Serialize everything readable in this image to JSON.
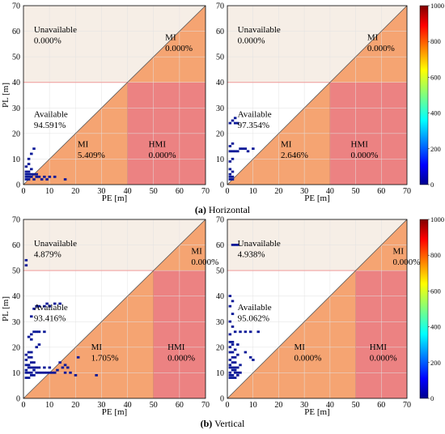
{
  "colors": {
    "unavailable": "#f6eee6",
    "mi": "#f5a472",
    "hmi": "#ec8282",
    "alertline": "#f09a9a",
    "grid": "#e2e2e2",
    "points": "#0c1a98"
  },
  "colorbar": {
    "min": 0,
    "max": 1000,
    "ticks": [
      "0",
      "200",
      "400",
      "600",
      "800",
      "1000"
    ],
    "colormap": "jet"
  },
  "captions": [
    {
      "letter": "(a)",
      "text": " Horizontal"
    },
    {
      "letter": "(b)",
      "text": " Vertical"
    }
  ],
  "chart_data": [
    {
      "type": "heatmap",
      "title": "",
      "xlabel": "PE [m]",
      "ylabel": "PL [m]",
      "xlim": [
        0,
        70
      ],
      "ylim": [
        0,
        70
      ],
      "xticks": [
        "0",
        "10",
        "20",
        "30",
        "40",
        "50",
        "60",
        "70"
      ],
      "yticks": [
        "0",
        "10",
        "20",
        "30",
        "40",
        "50",
        "60",
        "70"
      ],
      "alert_limit": 40,
      "regions": {
        "unavailable": {
          "label": "Unavailable",
          "value": "0.000%"
        },
        "available": {
          "label": "Available",
          "value": "94.591%"
        },
        "mi_upper": {
          "label": "MI",
          "value": "0.000%"
        },
        "mi_lower": {
          "label": "MI",
          "value": "5.409%"
        },
        "hmi": {
          "label": "HMI",
          "value": "0.000%"
        }
      },
      "points": [
        [
          1,
          2
        ],
        [
          1,
          3
        ],
        [
          2,
          2
        ],
        [
          2,
          3
        ],
        [
          3,
          3
        ],
        [
          4,
          2
        ],
        [
          5,
          3
        ],
        [
          6,
          3
        ],
        [
          7,
          2
        ],
        [
          8,
          3
        ],
        [
          1,
          4
        ],
        [
          2,
          4
        ],
        [
          3,
          4
        ],
        [
          4,
          4
        ],
        [
          5,
          4
        ],
        [
          1,
          5
        ],
        [
          2,
          5
        ],
        [
          3,
          6
        ],
        [
          1,
          7
        ],
        [
          2,
          8
        ],
        [
          2,
          10
        ],
        [
          3,
          12
        ],
        [
          4,
          14
        ],
        [
          10,
          3
        ],
        [
          12,
          3
        ],
        [
          16,
          2
        ],
        [
          9,
          2
        ]
      ]
    },
    {
      "type": "heatmap",
      "title": "",
      "xlabel": "PE [m]",
      "ylabel": "",
      "xlim": [
        0,
        70
      ],
      "ylim": [
        0,
        70
      ],
      "xticks": [
        "0",
        "10",
        "20",
        "30",
        "40",
        "50",
        "60",
        "70"
      ],
      "yticks": [
        "0",
        "10",
        "20",
        "30",
        "40",
        "50",
        "60",
        "70"
      ],
      "alert_limit": 40,
      "regions": {
        "unavailable": {
          "label": "Unavailable",
          "value": "0.000%"
        },
        "available": {
          "label": "Available",
          "value": "97.354%"
        },
        "mi_upper": {
          "label": "MI",
          "value": "0.000%"
        },
        "mi_lower": {
          "label": "MI",
          "value": "2.646%"
        },
        "hmi": {
          "label": "HMI",
          "value": "0.000%"
        }
      },
      "points": [
        [
          1,
          2
        ],
        [
          1,
          3
        ],
        [
          2,
          2
        ],
        [
          2,
          3
        ],
        [
          1,
          4
        ],
        [
          2,
          5
        ],
        [
          1,
          6
        ],
        [
          1,
          9
        ],
        [
          2,
          10
        ],
        [
          1,
          13
        ],
        [
          2,
          13
        ],
        [
          3,
          13
        ],
        [
          4,
          13
        ],
        [
          5,
          14
        ],
        [
          6,
          14
        ],
        [
          7,
          14
        ],
        [
          8,
          13
        ],
        [
          10,
          14
        ],
        [
          1,
          15
        ],
        [
          2,
          16
        ],
        [
          1,
          24
        ],
        [
          2,
          25
        ],
        [
          3,
          24
        ],
        [
          4,
          24
        ],
        [
          3,
          26
        ]
      ]
    },
    {
      "type": "heatmap",
      "title": "",
      "xlabel": "PE [m]",
      "ylabel": "PL [m]",
      "xlim": [
        0,
        70
      ],
      "ylim": [
        0,
        70
      ],
      "xticks": [
        "0",
        "10",
        "20",
        "30",
        "40",
        "50",
        "60",
        "70"
      ],
      "yticks": [
        "0",
        "10",
        "20",
        "30",
        "40",
        "50",
        "60",
        "70"
      ],
      "alert_limit": 50,
      "regions": {
        "unavailable": {
          "label": "Unavailable",
          "value": "4.879%"
        },
        "available": {
          "label": "Available",
          "value": "93.416%"
        },
        "mi_upper": {
          "label": "MI",
          "value": "0.000%"
        },
        "mi_lower": {
          "label": "MI",
          "value": "1.705%"
        },
        "hmi": {
          "label": "HMI",
          "value": "0.000%"
        }
      },
      "points": [
        [
          1,
          8
        ],
        [
          2,
          8
        ],
        [
          3,
          9
        ],
        [
          4,
          9
        ],
        [
          5,
          10
        ],
        [
          6,
          10
        ],
        [
          1,
          10
        ],
        [
          2,
          10
        ],
        [
          3,
          10
        ],
        [
          4,
          11
        ],
        [
          1,
          11
        ],
        [
          2,
          12
        ],
        [
          3,
          12
        ],
        [
          4,
          12
        ],
        [
          5,
          12
        ],
        [
          6,
          12
        ],
        [
          1,
          13
        ],
        [
          2,
          13
        ],
        [
          3,
          14
        ],
        [
          4,
          14
        ],
        [
          1,
          15
        ],
        [
          2,
          16
        ],
        [
          3,
          16
        ],
        [
          1,
          17
        ],
        [
          2,
          18
        ],
        [
          3,
          18
        ],
        [
          5,
          20
        ],
        [
          6,
          21
        ],
        [
          3,
          23
        ],
        [
          2,
          24
        ],
        [
          3,
          25
        ],
        [
          4,
          26
        ],
        [
          5,
          26
        ],
        [
          6,
          26
        ],
        [
          8,
          26
        ],
        [
          3,
          32
        ],
        [
          4,
          35
        ],
        [
          5,
          36
        ],
        [
          6,
          36
        ],
        [
          8,
          36
        ],
        [
          9,
          37
        ],
        [
          10,
          36
        ],
        [
          12,
          37
        ],
        [
          14,
          37
        ],
        [
          1,
          52
        ],
        [
          1,
          54
        ],
        [
          7,
          10
        ],
        [
          8,
          10
        ],
        [
          9,
          10
        ],
        [
          10,
          10
        ],
        [
          11,
          10
        ],
        [
          12,
          10
        ],
        [
          13,
          11
        ],
        [
          15,
          12
        ],
        [
          16,
          10
        ],
        [
          18,
          10
        ],
        [
          20,
          9
        ],
        [
          14,
          14
        ],
        [
          16,
          13
        ],
        [
          17,
          12
        ],
        [
          8,
          12
        ],
        [
          10,
          12
        ],
        [
          28,
          9
        ],
        [
          21,
          16
        ]
      ]
    },
    {
      "type": "heatmap",
      "title": "",
      "xlabel": "PE [m]",
      "ylabel": "",
      "xlim": [
        0,
        70
      ],
      "ylim": [
        0,
        70
      ],
      "xticks": [
        "0",
        "10",
        "20",
        "30",
        "40",
        "50",
        "60",
        "70"
      ],
      "yticks": [
        "0",
        "10",
        "20",
        "30",
        "40",
        "50",
        "60",
        "70"
      ],
      "alert_limit": 50,
      "regions": {
        "unavailable": {
          "label": "Unavailable",
          "value": "4.938%"
        },
        "available": {
          "label": "Available",
          "value": "95.062%"
        },
        "mi_upper": {
          "label": "MI",
          "value": "0.000%"
        },
        "mi_lower": {
          "label": "MI",
          "value": "0.000%"
        },
        "hmi": {
          "label": "HMI",
          "value": "0.000%"
        }
      },
      "points": [
        [
          1,
          8
        ],
        [
          2,
          8
        ],
        [
          3,
          8
        ],
        [
          4,
          9
        ],
        [
          1,
          9
        ],
        [
          2,
          9
        ],
        [
          3,
          10
        ],
        [
          4,
          10
        ],
        [
          5,
          10
        ],
        [
          1,
          10
        ],
        [
          2,
          11
        ],
        [
          3,
          11
        ],
        [
          1,
          12
        ],
        [
          2,
          12
        ],
        [
          3,
          12
        ],
        [
          4,
          12
        ],
        [
          5,
          13
        ],
        [
          1,
          13
        ],
        [
          2,
          14
        ],
        [
          3,
          14
        ],
        [
          1,
          15
        ],
        [
          2,
          16
        ],
        [
          3,
          16
        ],
        [
          4,
          17
        ],
        [
          1,
          18
        ],
        [
          2,
          18
        ],
        [
          3,
          19
        ],
        [
          1,
          20
        ],
        [
          2,
          21
        ],
        [
          1,
          22
        ],
        [
          2,
          22
        ],
        [
          4,
          21
        ],
        [
          1,
          25
        ],
        [
          3,
          26
        ],
        [
          5,
          26
        ],
        [
          7,
          26
        ],
        [
          9,
          26
        ],
        [
          12,
          26
        ],
        [
          2,
          28
        ],
        [
          1,
          30
        ],
        [
          2,
          33
        ],
        [
          1,
          36
        ],
        [
          2,
          38
        ],
        [
          1,
          40
        ],
        [
          2,
          60
        ],
        [
          3,
          60
        ],
        [
          4,
          60
        ],
        [
          7,
          18
        ],
        [
          9,
          16
        ],
        [
          10,
          15
        ]
      ]
    }
  ]
}
